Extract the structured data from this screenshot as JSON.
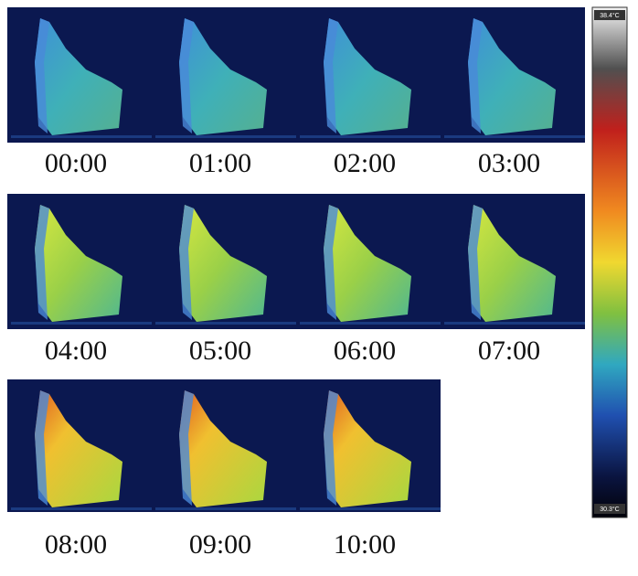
{
  "frames": [
    "00:00",
    "01:00",
    "02:00",
    "03:00",
    "04:00",
    "05:00",
    "06:00",
    "07:00",
    "08:00",
    "09:00",
    "10:00"
  ],
  "colorbar": {
    "max_label": "38.4°C",
    "min_label": "30.3°C"
  }
}
